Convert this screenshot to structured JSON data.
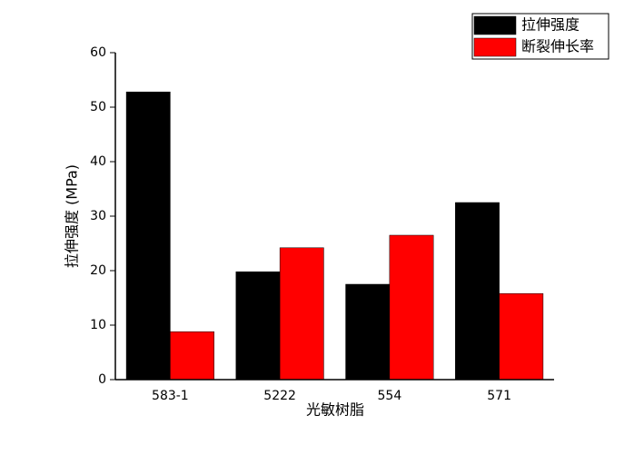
{
  "chart_data": {
    "type": "bar",
    "categories": [
      "583-1",
      "5222",
      "554",
      "571"
    ],
    "series": [
      {
        "name": "拉伸强度",
        "color": "#000000",
        "values": [
          52.8,
          19.8,
          17.5,
          32.5
        ]
      },
      {
        "name": "断裂伸长率",
        "color": "#ff0000",
        "values": [
          8.8,
          24.2,
          26.5,
          15.8
        ]
      }
    ],
    "x_label": "光敏树脂",
    "y_label": "拉伸强度 (MPa)",
    "ylim": [
      0,
      60
    ],
    "yticks": [
      0,
      10,
      20,
      30,
      40,
      50,
      60
    ],
    "grid": false,
    "legend": "top-right"
  }
}
